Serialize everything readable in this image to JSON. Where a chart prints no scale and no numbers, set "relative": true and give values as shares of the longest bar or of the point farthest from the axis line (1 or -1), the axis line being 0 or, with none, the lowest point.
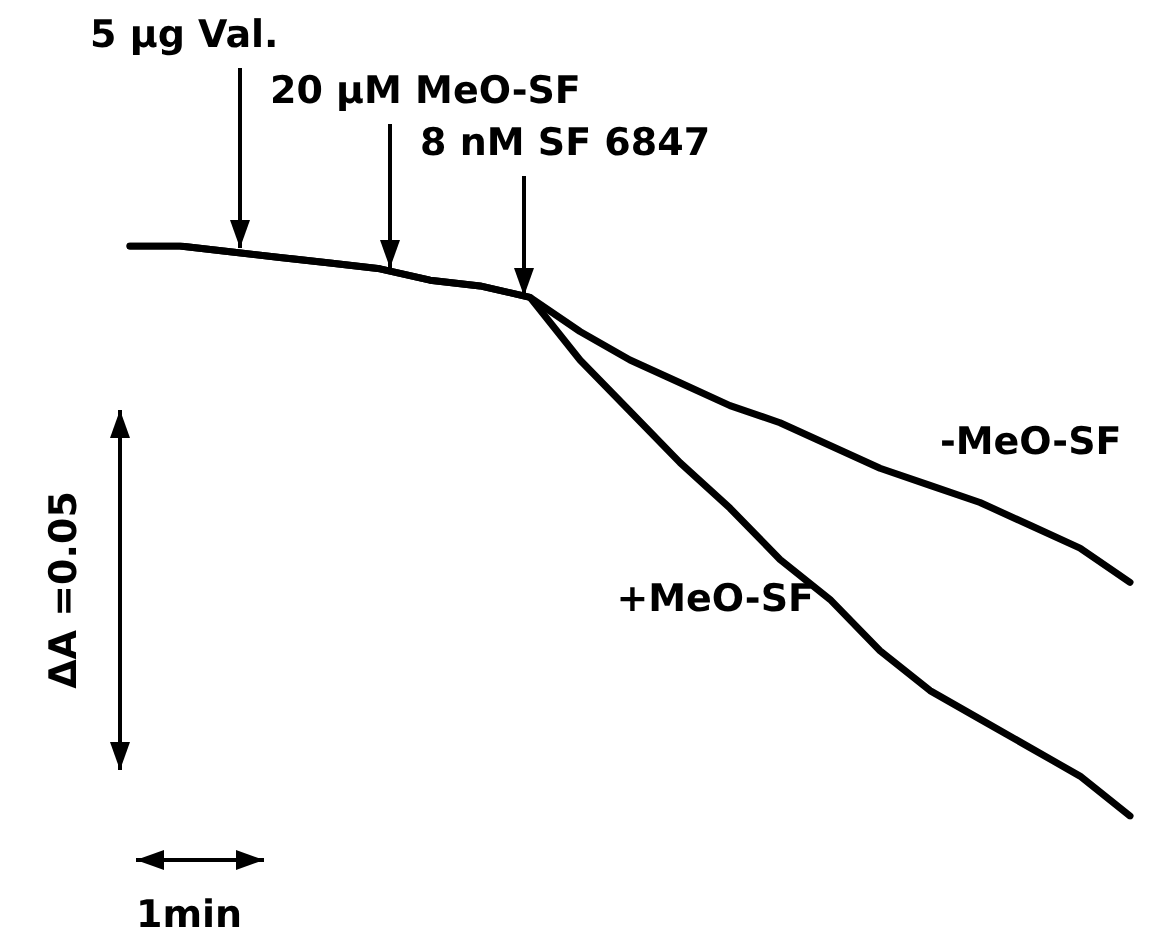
{
  "chart_data": {
    "type": "line",
    "relative": true,
    "marker": "none",
    "line_style": "solid",
    "grid": false,
    "legend": false,
    "categories": [
      null,
      null,
      null,
      null,
      null,
      null,
      null,
      null,
      null,
      null,
      null,
      null,
      null,
      null,
      null,
      null,
      null,
      null,
      null,
      null,
      null
    ],
    "series": [
      {
        "name": "-MeO-SF",
        "color": "#000000",
        "values": [
          1.0,
          1.0,
          0.99,
          0.98,
          0.97,
          0.96,
          0.94,
          0.93,
          0.91,
          0.85,
          0.8,
          0.76,
          0.72,
          0.69,
          0.65,
          0.61,
          0.58,
          0.55,
          0.51,
          0.47,
          0.41
        ]
      },
      {
        "name": "+MeO-SF",
        "color": "#000000",
        "values": [
          1.0,
          1.0,
          0.99,
          0.98,
          0.97,
          0.96,
          0.94,
          0.93,
          0.91,
          0.8,
          0.71,
          0.62,
          0.54,
          0.45,
          0.38,
          0.29,
          0.22,
          0.17,
          0.12,
          0.07,
          0.0
        ]
      }
    ],
    "annotations": [
      "5 µg Val.",
      "20 µM MeO-SF",
      "8 nM SF 6847",
      "ΔA =0.05",
      "1min"
    ]
  }
}
